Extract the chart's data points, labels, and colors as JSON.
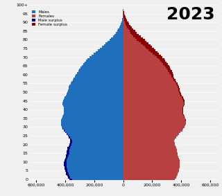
{
  "title": "2023",
  "ages": [
    0,
    1,
    2,
    3,
    4,
    5,
    6,
    7,
    8,
    9,
    10,
    11,
    12,
    13,
    14,
    15,
    16,
    17,
    18,
    19,
    20,
    21,
    22,
    23,
    24,
    25,
    26,
    27,
    28,
    29,
    30,
    31,
    32,
    33,
    34,
    35,
    36,
    37,
    38,
    39,
    40,
    41,
    42,
    43,
    44,
    45,
    46,
    47,
    48,
    49,
    50,
    51,
    52,
    53,
    54,
    55,
    56,
    57,
    58,
    59,
    60,
    61,
    62,
    63,
    64,
    65,
    66,
    67,
    68,
    69,
    70,
    71,
    72,
    73,
    74,
    75,
    76,
    77,
    78,
    79,
    80,
    81,
    82,
    83,
    84,
    85,
    86,
    87,
    88,
    89,
    90,
    91,
    92,
    93,
    94,
    95,
    96,
    97,
    98,
    99,
    100
  ],
  "males": [
    371000,
    381000,
    387000,
    393000,
    397000,
    400000,
    403000,
    405000,
    407000,
    408000,
    407000,
    405000,
    401000,
    397000,
    393000,
    390000,
    388000,
    386000,
    383000,
    378000,
    372000,
    368000,
    365000,
    368000,
    374000,
    382000,
    390000,
    400000,
    410000,
    418000,
    424000,
    428000,
    430000,
    430000,
    428000,
    425000,
    420000,
    415000,
    410000,
    408000,
    408000,
    410000,
    415000,
    418000,
    418000,
    415000,
    410000,
    403000,
    395000,
    388000,
    383000,
    380000,
    378000,
    375000,
    370000,
    363000,
    355000,
    347000,
    340000,
    333000,
    326000,
    318000,
    310000,
    302000,
    294000,
    285000,
    275000,
    265000,
    255000,
    245000,
    232000,
    218000,
    204000,
    190000,
    176000,
    162000,
    148000,
    134000,
    120000,
    107000,
    94000,
    82000,
    71000,
    61000,
    52000,
    43000,
    35000,
    28000,
    22000,
    17000,
    12000,
    9000,
    6000,
    4000,
    3000,
    2000,
    1000,
    700,
    400,
    200,
    100
  ],
  "females": [
    354000,
    364000,
    370000,
    376000,
    380000,
    383000,
    386000,
    388000,
    390000,
    391000,
    390000,
    388000,
    384000,
    380000,
    376000,
    373000,
    371000,
    369000,
    366000,
    361000,
    357000,
    354000,
    353000,
    357000,
    364000,
    374000,
    384000,
    395000,
    406000,
    415000,
    422000,
    427000,
    430000,
    431000,
    430000,
    427000,
    422000,
    417000,
    413000,
    411000,
    412000,
    415000,
    420000,
    423000,
    424000,
    421000,
    417000,
    411000,
    404000,
    397000,
    392000,
    389000,
    387000,
    384000,
    380000,
    373000,
    366000,
    359000,
    352000,
    346000,
    345000,
    340000,
    335000,
    329000,
    323000,
    316000,
    308000,
    300000,
    291000,
    282000,
    271000,
    259000,
    247000,
    235000,
    223000,
    211000,
    199000,
    187000,
    174000,
    161000,
    148000,
    134000,
    120000,
    107000,
    94000,
    82000,
    71000,
    61000,
    51000,
    42000,
    34000,
    27000,
    21000,
    16000,
    12000,
    8000,
    5000,
    3000,
    2000,
    900,
    300
  ],
  "male_color": "#1f6fbd",
  "female_color": "#b94040",
  "male_surplus_color": "#00008b",
  "female_surplus_color": "#8b0000",
  "bg_color": "#f0f0f0",
  "xlim": 650000,
  "grid_color": "#ffffff"
}
